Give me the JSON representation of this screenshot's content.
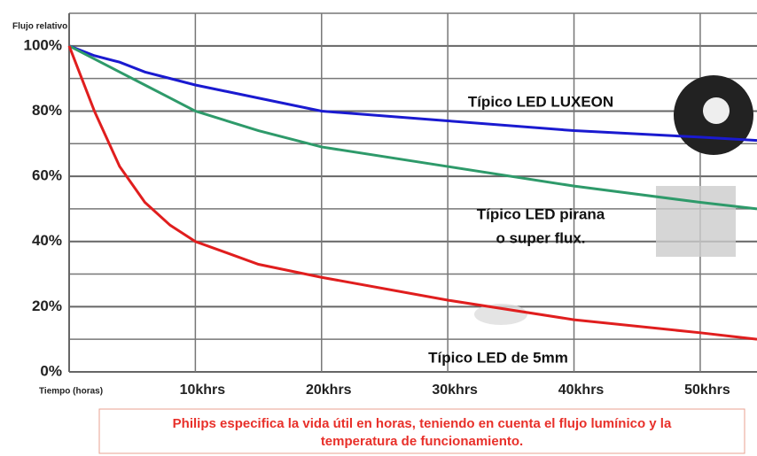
{
  "chart_data": {
    "type": "line",
    "y_label": "Flujo relativo",
    "x_label": "Tiempo (horas)",
    "x": [
      0,
      2,
      4,
      6,
      8,
      10,
      15,
      20,
      30,
      40,
      50,
      54.5
    ],
    "xlim": [
      0,
      54.5
    ],
    "xticks": [
      {
        "value": 10,
        "label": "10khrs"
      },
      {
        "value": 20,
        "label": "20khrs"
      },
      {
        "value": 30,
        "label": "30khrs"
      },
      {
        "value": 40,
        "label": "40khrs"
      },
      {
        "value": 50,
        "label": "50khrs"
      }
    ],
    "ylim": [
      0,
      110
    ],
    "yticks": [
      {
        "value": 0,
        "label": "0%"
      },
      {
        "value": 20,
        "label": "20%"
      },
      {
        "value": 40,
        "label": "40%"
      },
      {
        "value": 60,
        "label": "60%"
      },
      {
        "value": 80,
        "label": "80%"
      },
      {
        "value": 100,
        "label": "100%"
      }
    ],
    "minor_yticks": [
      10,
      30,
      50,
      70,
      90,
      110
    ],
    "grid": true,
    "series": [
      {
        "name": "Típico LED LUXEON",
        "color": "#1a1ad0",
        "values": [
          100,
          97,
          95,
          92,
          90,
          88,
          84,
          80,
          77,
          74,
          72,
          71
        ]
      },
      {
        "name": "Típico LED pirana o super flux.",
        "color": "#2e9a6a",
        "values": [
          100,
          96,
          92,
          88,
          84,
          80,
          74,
          69,
          63,
          57,
          52,
          50
        ]
      },
      {
        "name": "Típico LED de 5mm",
        "color": "#e01e1e",
        "values": [
          100,
          80,
          63,
          52,
          45,
          40,
          33,
          29,
          22,
          16,
          12,
          10
        ]
      }
    ],
    "annotations": [
      "Típico LED LUXEON",
      "Típico LED pirana",
      "o super flux.",
      "Típico LED de 5mm"
    ],
    "caption": [
      "Philips especifica la vida útil en horas, teniendo en cuenta el flujo lumínico y la",
      "temperatura de funcionamiento."
    ]
  }
}
